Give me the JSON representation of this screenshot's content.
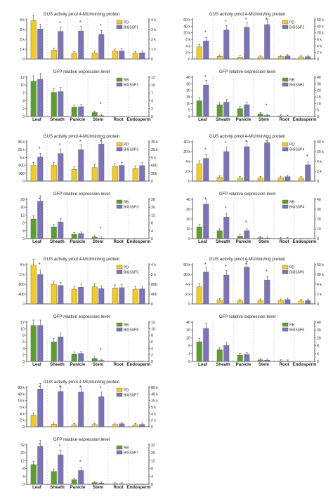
{
  "colors": {
    "pd": "#f5cc1a",
    "bigssp": "#7b74bd",
    "rb": "#5aa12a",
    "bar_stroke": "#555555",
    "axis": "#333333",
    "divider": "#bbbbbb"
  },
  "tissues": [
    "Leaf",
    "Sheath",
    "Panicle",
    "Stem",
    "Root",
    "Endosperm"
  ],
  "chart_data": [
    {
      "type": "bar",
      "panel": 1,
      "title": "GUS activity pmol 4-MU/min/mg protein",
      "categories": [
        "Leaf",
        "Sheath",
        "Panicle",
        "Stem",
        "Root",
        "Endosperm"
      ],
      "yticks": [
        "4 k",
        "3 k",
        "2 k",
        "1 k",
        "0"
      ],
      "series": [
        {
          "name": "PD",
          "values": [
            3900,
            900,
            580,
            620,
            800,
            600
          ]
        },
        {
          "name": "BiGSSP1",
          "values": [
            3050,
            2800,
            2850,
            2500,
            810,
            620
          ]
        }
      ],
      "significant": [
        false,
        true,
        true,
        true,
        false,
        false
      ]
    },
    {
      "type": "bar",
      "panel": 1,
      "title": "GFP relative expression level",
      "categories": [
        "Leaf",
        "Sheath",
        "Panicle",
        "Stem",
        "Root",
        "Endosperm"
      ],
      "yticks": [
        "12",
        "10",
        "7",
        "4",
        "2",
        "0"
      ],
      "series": [
        {
          "name": "RB",
          "values": [
            11,
            7.2,
            2.4,
            1.0,
            0,
            0
          ]
        },
        {
          "name": "BiGSSP1",
          "values": [
            11.5,
            7.5,
            2.5,
            0.2,
            0,
            0
          ]
        }
      ],
      "significant": [
        false,
        false,
        false,
        true,
        false,
        false
      ]
    },
    {
      "type": "bar",
      "panel": 2,
      "title": "GUS activity pmol 4-MU/min/mg protein",
      "categories": [
        "Leaf",
        "Sheath",
        "Panicle",
        "Stem",
        "Root",
        "Endosperm"
      ],
      "yticks": [
        "60 k",
        "40 k",
        "20 k",
        "6 k",
        "4 k",
        "2 k",
        "0"
      ],
      "series": [
        {
          "name": "PD",
          "values": [
            3700,
            800,
            600,
            650,
            750,
            650
          ]
        },
        {
          "name": "BiGSSP2",
          "values": [
            5500,
            28000,
            37000,
            45000,
            900,
            700
          ]
        }
      ],
      "significant": [
        true,
        true,
        true,
        true,
        false,
        false
      ]
    },
    {
      "type": "bar",
      "panel": 2,
      "title": "GFP relative expression level",
      "categories": [
        "Leaf",
        "Sheath",
        "Panicle",
        "Stem",
        "Root",
        "Endosperm"
      ],
      "yticks": [
        "40",
        "30",
        "20",
        "15",
        "10",
        "5",
        "0"
      ],
      "series": [
        {
          "name": "RB",
          "values": [
            12,
            9,
            6,
            2,
            0.5,
            0
          ]
        },
        {
          "name": "BiGSSP2",
          "values": [
            28,
            11,
            9,
            0.8,
            0.2,
            0
          ]
        }
      ],
      "significant": [
        true,
        false,
        false,
        true,
        false,
        false
      ]
    },
    {
      "type": "bar",
      "panel": 3,
      "title": "GUS activity pmol 4-MU/min/mg protein",
      "categories": [
        "Leaf",
        "Sheath",
        "Panicle",
        "Stem",
        "Root",
        "Endosperm"
      ],
      "yticks": [
        "35 k",
        "25 k",
        "5 k",
        "600",
        "300",
        "0"
      ],
      "series": [
        {
          "name": "PD",
          "values": [
            650,
            660,
            450,
            520,
            560,
            480
          ]
        },
        {
          "name": "BiGSSP3",
          "values": [
            6000,
            15000,
            25000,
            32000,
            600,
            590
          ]
        }
      ],
      "significant": [
        true,
        true,
        true,
        true,
        false,
        false
      ]
    },
    {
      "type": "bar",
      "panel": 3,
      "title": "GFP relative expression level",
      "categories": [
        "Leaf",
        "Sheath",
        "Panicle",
        "Stem",
        "Root",
        "Endosperm"
      ],
      "yticks": [
        "28",
        "20",
        "12",
        "8",
        "4",
        "0"
      ],
      "series": [
        {
          "name": "RB",
          "values": [
            10,
            6,
            2.3,
            0.8,
            0,
            0
          ]
        },
        {
          "name": "BiGSSP3",
          "values": [
            26,
            8.5,
            2.6,
            0.3,
            0,
            0
          ]
        }
      ],
      "significant": [
        true,
        false,
        false,
        true,
        false,
        false
      ]
    },
    {
      "type": "bar",
      "panel": 4,
      "title": "GUS activity pmol 4-MU/min/mg protein",
      "categories": [
        "Leaf",
        "Sheath",
        "Panicle",
        "Stem",
        "Root",
        "Endosperm"
      ],
      "yticks": [
        "40 k",
        "20 k",
        "4 k",
        "2 k",
        "0"
      ],
      "series": [
        {
          "name": "PD",
          "values": [
            3500,
            800,
            600,
            650,
            700,
            600
          ]
        },
        {
          "name": "BiGSSP4",
          "values": [
            9000,
            20000,
            30000,
            38000,
            900,
            3300
          ]
        }
      ],
      "significant": [
        true,
        true,
        true,
        true,
        false,
        true
      ]
    },
    {
      "type": "bar",
      "panel": 4,
      "title": "GFP relative expression level",
      "categories": [
        "Leaf",
        "Sheath",
        "Panicle",
        "Stem",
        "Root",
        "Endosperm"
      ],
      "yticks": [
        "40",
        "30",
        "20",
        "10",
        "0"
      ],
      "series": [
        {
          "name": "RB",
          "values": [
            12,
            8,
            2.5,
            1.0,
            0.3,
            0
          ]
        },
        {
          "name": "BiGSSP4",
          "values": [
            35,
            22,
            8,
            0.6,
            0.2,
            0
          ]
        }
      ],
      "significant": [
        true,
        true,
        true,
        false,
        false,
        false
      ]
    },
    {
      "type": "bar",
      "panel": 5,
      "title": "GUS activity pmol 4-MU/min/mg protein",
      "categories": [
        "Leaf",
        "Sheath",
        "Panicle",
        "Stem",
        "Root",
        "Endosperm"
      ],
      "yticks": [
        "4 k",
        "2 k",
        "800",
        "400",
        "0"
      ],
      "series": [
        {
          "name": "PD",
          "values": [
            3900,
            800,
            600,
            700,
            650,
            600
          ]
        },
        {
          "name": "BiGSSP5",
          "values": [
            2000,
            750,
            680,
            620,
            660,
            610
          ]
        }
      ],
      "significant": [
        true,
        false,
        false,
        false,
        false,
        false
      ]
    },
    {
      "type": "bar",
      "panel": 5,
      "title": "GFP relative expression level",
      "categories": [
        "Leaf",
        "Sheath",
        "Panicle",
        "Stem",
        "Root",
        "Endosperm"
      ],
      "yticks": [
        "12",
        "10",
        "8",
        "6",
        "4",
        "2",
        "0"
      ],
      "series": [
        {
          "name": "RB",
          "values": [
            11,
            6,
            2.3,
            0.9,
            0,
            0
          ]
        },
        {
          "name": "BiGSSP5",
          "values": [
            11,
            7.5,
            2.4,
            0.3,
            0,
            0
          ]
        }
      ],
      "significant": [
        false,
        false,
        false,
        true,
        false,
        false
      ]
    },
    {
      "type": "bar",
      "panel": 6,
      "title": "GUS activity pmol 4-MU/min/mg protein",
      "categories": [
        "Leaf",
        "Sheath",
        "Panicle",
        "Stem",
        "Root",
        "Endosperm"
      ],
      "yticks": [
        "50 k",
        "30 k",
        "4 k",
        "2 k",
        "0"
      ],
      "series": [
        {
          "name": "PD",
          "values": [
            3500,
            800,
            650,
            700,
            700,
            600
          ]
        },
        {
          "name": "BiGSSP6",
          "values": [
            35000,
            28000,
            45000,
            15000,
            900,
            700
          ]
        }
      ],
      "significant": [
        true,
        true,
        true,
        true,
        false,
        false
      ]
    },
    {
      "type": "bar",
      "panel": 6,
      "title": "GFP relative expression level",
      "categories": [
        "Leaf",
        "Sheath",
        "Panicle",
        "Stem",
        "Root",
        "Endosperm"
      ],
      "yticks": [
        "40",
        "30",
        "20",
        "8",
        "4",
        "0"
      ],
      "series": [
        {
          "name": "RB",
          "values": [
            14,
            6,
            3.2,
            0.8,
            0.3,
            0
          ]
        },
        {
          "name": "BiGSSP6",
          "values": [
            32,
            8.5,
            3.6,
            0.6,
            0.2,
            0
          ]
        }
      ],
      "significant": [
        false,
        false,
        false,
        false,
        false,
        false
      ]
    },
    {
      "type": "bar",
      "panel": 7,
      "title": "GUS activity pmol 4-MU/min/mg protein",
      "categories": [
        "Leaf",
        "Sheath",
        "Panicle",
        "Stem",
        "Root",
        "Endosperm"
      ],
      "yticks": [
        "80 k",
        "40 k",
        "15 k",
        "5 k",
        "4 k",
        "2 k",
        "0"
      ],
      "series": [
        {
          "name": "PD",
          "values": [
            3500,
            800,
            600,
            650,
            700,
            600
          ]
        },
        {
          "name": "BiGSSP7",
          "values": [
            70000,
            55000,
            52000,
            30000,
            900,
            700
          ]
        }
      ],
      "significant": [
        true,
        true,
        true,
        true,
        false,
        false
      ]
    },
    {
      "type": "bar",
      "panel": 7,
      "title": "GFP relative expression level",
      "categories": [
        "Leaf",
        "Sheath",
        "Panicle",
        "Stem",
        "Root",
        "Endosperm"
      ],
      "yticks": [
        "32",
        "20",
        "12",
        "8",
        "4",
        "0"
      ],
      "series": [
        {
          "name": "RB",
          "values": [
            10,
            6.5,
            2.3,
            0.8,
            0.2,
            0
          ]
        },
        {
          "name": "BiGSSP7",
          "values": [
            30,
            18,
            7,
            0.6,
            0.2,
            0
          ]
        }
      ],
      "significant": [
        true,
        true,
        true,
        false,
        false,
        false
      ]
    }
  ]
}
